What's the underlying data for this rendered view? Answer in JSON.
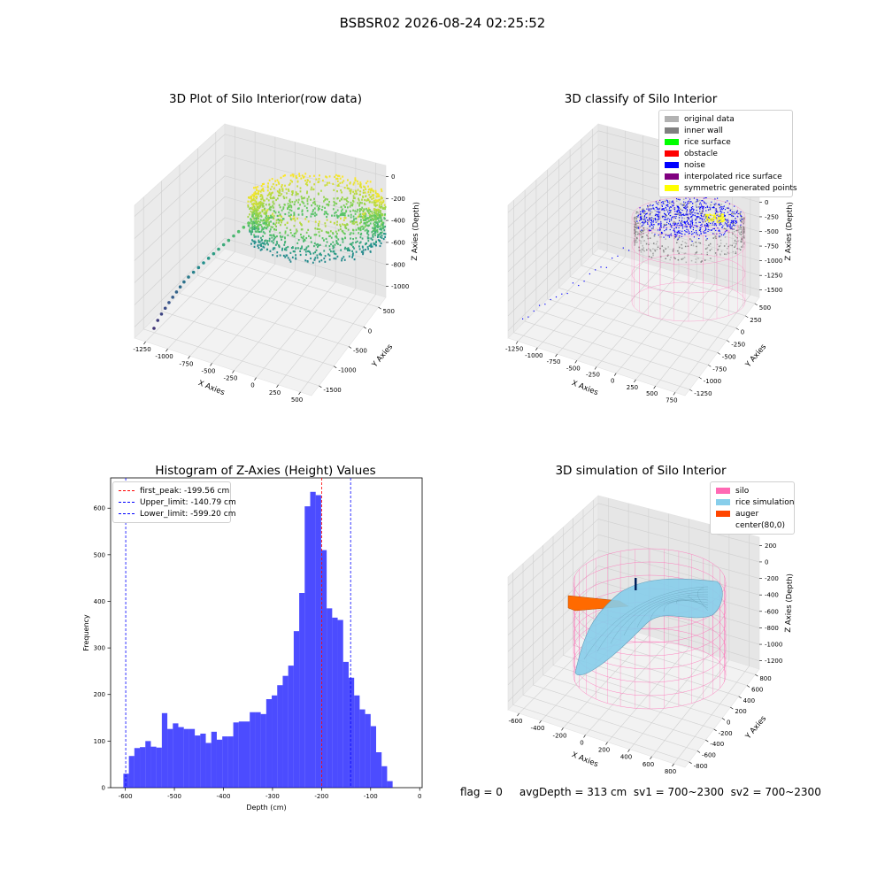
{
  "suptitle": "BSBSR02 2026-08-24 02:25:52",
  "footer": "flag = 0     avgDepth = 313 cm  sv1 = 700~2300  sv2 = 700~2300",
  "chart_data": [
    {
      "type": "scatter",
      "title": "3D Plot of Silo Interior(row data)",
      "xlabel": "X Axies",
      "ylabel": "Y Axies",
      "zlabel": "Z Axies (Depth)",
      "xticks": [
        "-1250",
        "-1000",
        "-750",
        "-500",
        "-250",
        "0",
        "250",
        "500"
      ],
      "yticks": [
        "-1500",
        "-1000",
        "-500",
        "0",
        "500"
      ],
      "zticks": [
        "-1000",
        "-800",
        "-600",
        "-400",
        "-200",
        "0"
      ],
      "xlim": [
        -1300,
        600
      ],
      "ylim": [
        -1600,
        700
      ],
      "zlim": [
        -1050,
        0
      ],
      "colormap": "viridis"
    },
    {
      "type": "scatter",
      "title": "3D classify of Silo Interior",
      "xlabel": "X Axies",
      "ylabel": "Y Axies",
      "zlabel": "Z Axies (Depth)",
      "xticks": [
        "-1250",
        "-1000",
        "-750",
        "-500",
        "-250",
        "0",
        "250",
        "500",
        "750"
      ],
      "yticks": [
        "-1250",
        "-1000",
        "-750",
        "-500",
        "-250",
        "0",
        "250",
        "500"
      ],
      "zticks": [
        "-1500",
        "-1250",
        "-1000",
        "-750",
        "-500",
        "-250",
        "0",
        "250",
        "500"
      ],
      "xlim": [
        -1300,
        800
      ],
      "ylim": [
        -1300,
        600
      ],
      "zlim": [
        -1500,
        500
      ],
      "legend": [
        {
          "label": "original data",
          "color": "#b2b2b2"
        },
        {
          "label": "inner wall",
          "color": "#808080"
        },
        {
          "label": "rice surface",
          "color": "#00ff00"
        },
        {
          "label": "obstacle",
          "color": "#ff0000"
        },
        {
          "label": "noise",
          "color": "#0000ff"
        },
        {
          "label": "interpolated rice surface",
          "color": "#800080"
        },
        {
          "label": "symmetric generated points",
          "color": "#ffff00"
        }
      ],
      "legend_position": "top-right"
    },
    {
      "type": "bar",
      "title": "Histogram of Z-Axies (Height) Values",
      "xlabel": "Depth (cm)",
      "ylabel": "Frequency",
      "xlim": [
        -630,
        5
      ],
      "ylim": [
        0,
        665
      ],
      "xticks": [
        -600,
        -500,
        -400,
        -300,
        -200,
        -100,
        0
      ],
      "yticks": [
        0,
        100,
        200,
        300,
        400,
        500,
        600
      ],
      "bin_width": 11.2,
      "bin_start": -604,
      "bar_color": "#0000ff",
      "values": [
        30,
        68,
        85,
        87,
        100,
        88,
        86,
        160,
        126,
        138,
        130,
        126,
        126,
        112,
        116,
        96,
        120,
        103,
        110,
        110,
        140,
        142,
        142,
        162,
        162,
        158,
        190,
        198,
        220,
        240,
        262,
        336,
        418,
        604,
        635,
        628,
        510,
        385,
        365,
        360,
        270,
        236,
        198,
        168,
        158,
        132,
        76,
        46,
        14
      ],
      "vlines": [
        {
          "label": "first_peak: -199.56 cm",
          "x": -199.56,
          "color": "#ff0000"
        },
        {
          "label": "Upper_limit: -140.79 cm",
          "x": -140.79,
          "color": "#0000ff"
        },
        {
          "label": "Lower_limit: -599.20 cm",
          "x": -599.2,
          "color": "#0000ff"
        }
      ],
      "legend_position": "top-left"
    },
    {
      "type": "surface",
      "title": "3D simulation of Silo Interior",
      "xlabel": "X Axies",
      "ylabel": "Y Axies",
      "zlabel": "Z Axies (Depth)",
      "xticks": [
        "-600",
        "-400",
        "-200",
        "0",
        "200",
        "400",
        "600",
        "800"
      ],
      "yticks": [
        "-800",
        "-600",
        "-400",
        "-200",
        "0",
        "200",
        "400",
        "600",
        "800"
      ],
      "zticks": [
        "-1200",
        "-1000",
        "-800",
        "-600",
        "-400",
        "-200",
        "0",
        "200"
      ],
      "xlim": [
        -700,
        850
      ],
      "ylim": [
        -850,
        850
      ],
      "zlim": [
        -1300,
        300
      ],
      "legend": [
        {
          "label": "silo",
          "color": "#ff69b4"
        },
        {
          "label": "rice simulation",
          "color": "#87ceeb"
        },
        {
          "label": "auger",
          "color": "#ff4500"
        },
        {
          "label": "center(80,0)",
          "color": "#ffffff"
        }
      ],
      "legend_position": "top-right"
    }
  ]
}
